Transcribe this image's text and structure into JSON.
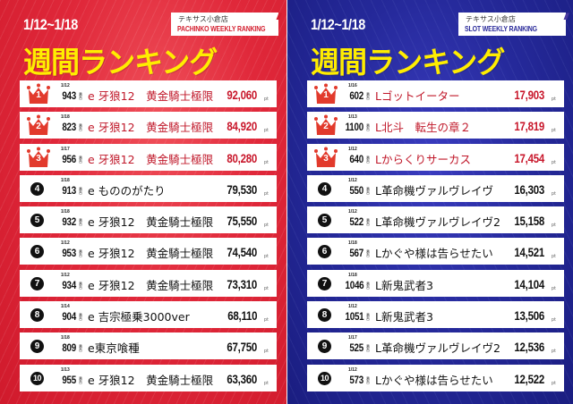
{
  "pachinko": {
    "date_range": "1/12~1/18",
    "store": "テキサス小倉店",
    "subtitle": "PACHINKO WEEKLY RANKING",
    "slashes": "////",
    "title": "週間ランキング",
    "accent_color": "#d42030",
    "unit": "番台",
    "pt_label": "pt",
    "rows": [
      {
        "rank": "1",
        "date": "1/12",
        "machine_no": "943",
        "name": "e 牙狼12　黄金騎士極限",
        "points": "92,060"
      },
      {
        "rank": "2",
        "date": "1/18",
        "machine_no": "823",
        "name": "e 牙狼12　黄金騎士極限",
        "points": "84,920"
      },
      {
        "rank": "3",
        "date": "1/17",
        "machine_no": "956",
        "name": "e 牙狼12　黄金騎士極限",
        "points": "80,280"
      },
      {
        "rank": "4",
        "date": "1/18",
        "machine_no": "913",
        "name": "e もののがたり",
        "points": "79,530"
      },
      {
        "rank": "5",
        "date": "1/18",
        "machine_no": "932",
        "name": "e 牙狼12　黄金騎士極限",
        "points": "75,550"
      },
      {
        "rank": "6",
        "date": "1/12",
        "machine_no": "953",
        "name": "e 牙狼12　黄金騎士極限",
        "points": "74,540"
      },
      {
        "rank": "7",
        "date": "1/12",
        "machine_no": "934",
        "name": "e 牙狼12　黄金騎士極限",
        "points": "73,310"
      },
      {
        "rank": "8",
        "date": "1/14",
        "machine_no": "904",
        "name": "e 吉宗極乗3000ver",
        "points": "68,110"
      },
      {
        "rank": "9",
        "date": "1/18",
        "machine_no": "809",
        "name": "e東京喰種",
        "points": "67,750"
      },
      {
        "rank": "10",
        "date": "1/13",
        "machine_no": "955",
        "name": "e 牙狼12　黄金騎士極限",
        "points": "63,360"
      }
    ]
  },
  "slot": {
    "date_range": "1/12~1/18",
    "store": "テキサス小倉店",
    "subtitle": "SLOT WEEKLY RANKING",
    "slashes": "////",
    "title": "週間ランキング",
    "accent_color": "#2a2a9a",
    "unit": "番台",
    "pt_label": "pt",
    "rows": [
      {
        "rank": "1",
        "date": "1/16",
        "machine_no": "602",
        "name": "Lゴットイーター",
        "points": "17,903"
      },
      {
        "rank": "2",
        "date": "1/13",
        "machine_no": "1100",
        "name": "L北斗　転生の章２",
        "points": "17,819"
      },
      {
        "rank": "3",
        "date": "1/12",
        "machine_no": "640",
        "name": "Lからくりサーカス",
        "points": "17,454"
      },
      {
        "rank": "4",
        "date": "1/12",
        "machine_no": "550",
        "name": "L革命機ヴァルヴレイヴ",
        "points": "16,303"
      },
      {
        "rank": "5",
        "date": "1/12",
        "machine_no": "522",
        "name": "L革命機ヴァルヴレイヴ2",
        "points": "15,158"
      },
      {
        "rank": "6",
        "date": "1/18",
        "machine_no": "567",
        "name": "Lかぐや様は告らせたい",
        "points": "14,521"
      },
      {
        "rank": "7",
        "date": "1/18",
        "machine_no": "1046",
        "name": "L新鬼武者3",
        "points": "14,104"
      },
      {
        "rank": "8",
        "date": "1/12",
        "machine_no": "1051",
        "name": "L新鬼武者3",
        "points": "13,506"
      },
      {
        "rank": "9",
        "date": "1/17",
        "machine_no": "525",
        "name": "L革命機ヴァルヴレイヴ2",
        "points": "12,536"
      },
      {
        "rank": "10",
        "date": "1/12",
        "machine_no": "573",
        "name": "Lかぐや様は告らせたい",
        "points": "12,522"
      }
    ]
  }
}
